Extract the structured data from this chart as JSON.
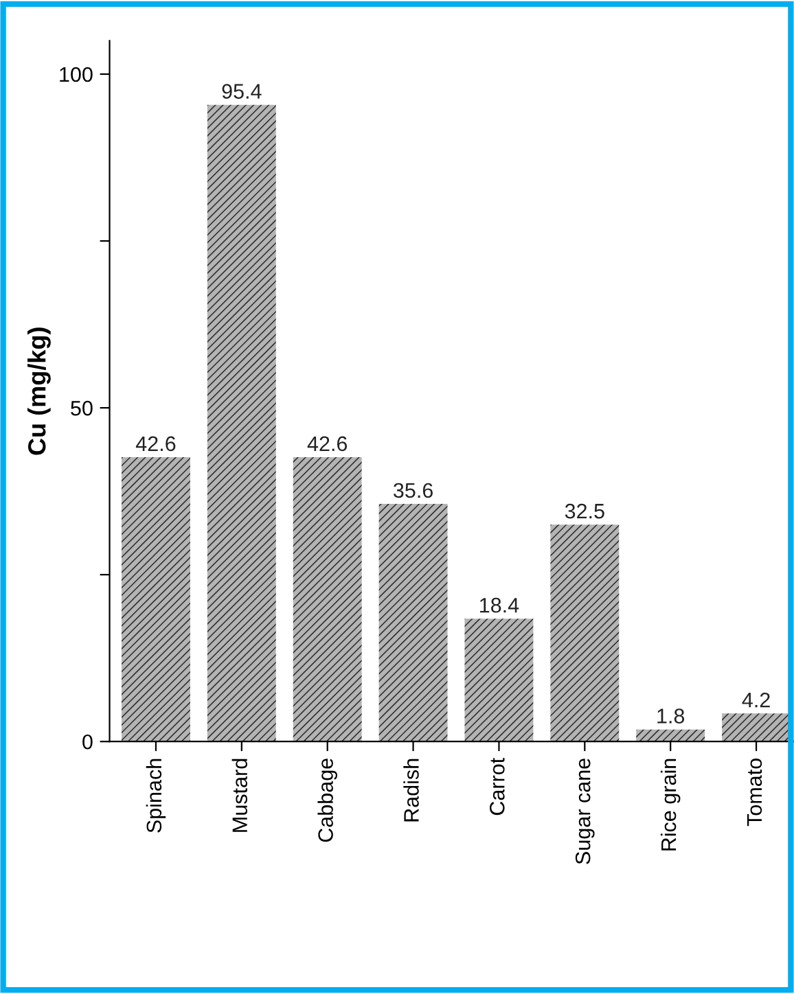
{
  "chart_data": {
    "type": "bar",
    "ylabel": "Cu (mg/kg)",
    "categories": [
      "Spinach",
      "Mustard",
      "Cabbage",
      "Radish",
      "Carrot",
      "Sugar cane",
      "Rice grain",
      "Tomato"
    ],
    "values": [
      42.6,
      95.4,
      42.6,
      35.6,
      18.4,
      32.5,
      1.8,
      4.2
    ],
    "color": "#b4b4b4",
    "data_labels": true,
    "grid": false,
    "legend": false,
    "ylim": [
      0,
      105
    ],
    "yticks": [
      0,
      {
        "value": 25,
        "label": null
      },
      50,
      {
        "value": 75,
        "label": null
      },
      100
    ]
  }
}
